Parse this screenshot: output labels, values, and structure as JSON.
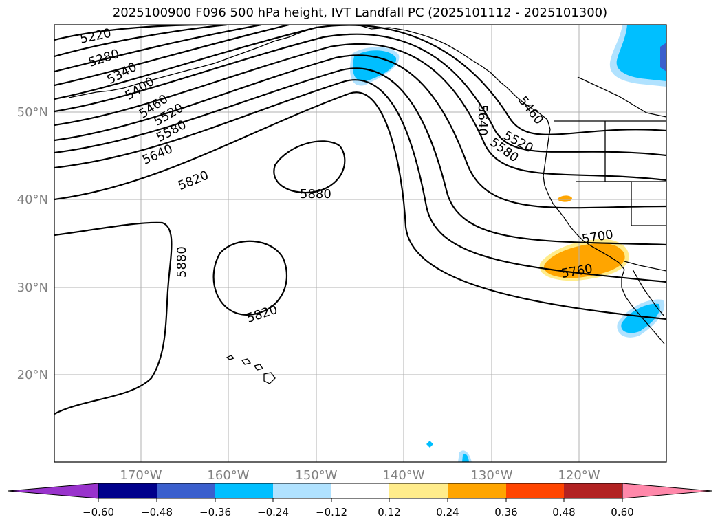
{
  "title": "2025100900 F096 500 hPa height, IVT Landfall PC (2025101112 - 2025101300)",
  "map": {
    "lon_labels": [
      "170°W",
      "160°W",
      "150°W",
      "140°W",
      "130°W",
      "120°W"
    ],
    "lat_labels": [
      "50°N",
      "40°N",
      "30°N",
      "20°N"
    ],
    "height_contour_labels": [
      "5220",
      "5280",
      "5340",
      "5400",
      "5460",
      "5520",
      "5580",
      "5640",
      "5820",
      "5880",
      "5880",
      "5820",
      "5640",
      "5460",
      "5520",
      "5580",
      "5700",
      "5760"
    ],
    "grid_color": "#b0b0b0",
    "gridlabel_color": "#808080"
  },
  "colorbar": {
    "ticks": [
      "−0.60",
      "−0.48",
      "−0.36",
      "−0.24",
      "−0.12",
      "0.12",
      "0.24",
      "0.36",
      "0.48",
      "0.60"
    ],
    "colors": [
      "#9933cc",
      "#00008b",
      "#3a5fcd",
      "#00bfff",
      "#b0e2ff",
      "#ffffff",
      "#ffec8b",
      "#ffa500",
      "#ff4500",
      "#b22222",
      "#ff88aa"
    ]
  }
}
